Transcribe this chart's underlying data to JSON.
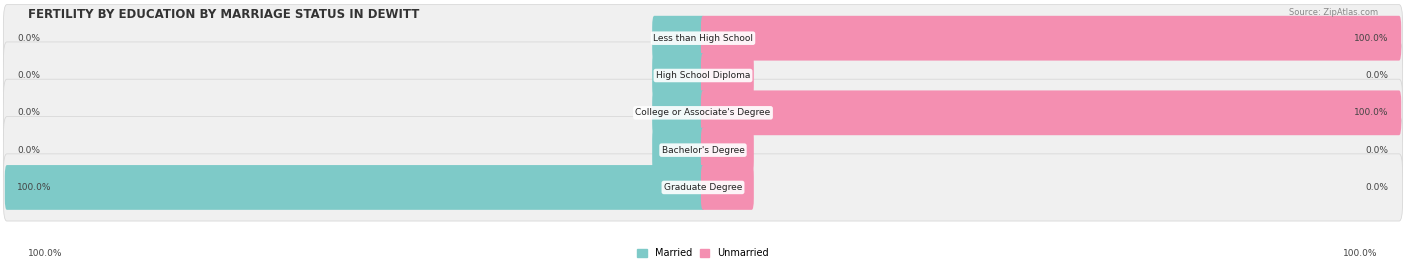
{
  "title": "FERTILITY BY EDUCATION BY MARRIAGE STATUS IN DEWITT",
  "source": "Source: ZipAtlas.com",
  "categories": [
    "Less than High School",
    "High School Diploma",
    "College or Associate's Degree",
    "Bachelor's Degree",
    "Graduate Degree"
  ],
  "married_values": [
    0.0,
    0.0,
    0.0,
    0.0,
    100.0
  ],
  "unmarried_values": [
    100.0,
    0.0,
    100.0,
    0.0,
    0.0
  ],
  "married_color": "#7ecac8",
  "unmarried_color": "#f48fb1",
  "background_color": "#ffffff",
  "row_bg_color": "#f0f0f0",
  "row_edge_color": "#d8d8d8",
  "stub_size": 7,
  "bar_height": 0.6,
  "xlim": 100,
  "legend_married_label": "Married",
  "legend_unmarried_label": "Unmarried",
  "title_fontsize": 8.5,
  "source_fontsize": 6.0,
  "value_fontsize": 6.5,
  "cat_fontsize": 6.5
}
